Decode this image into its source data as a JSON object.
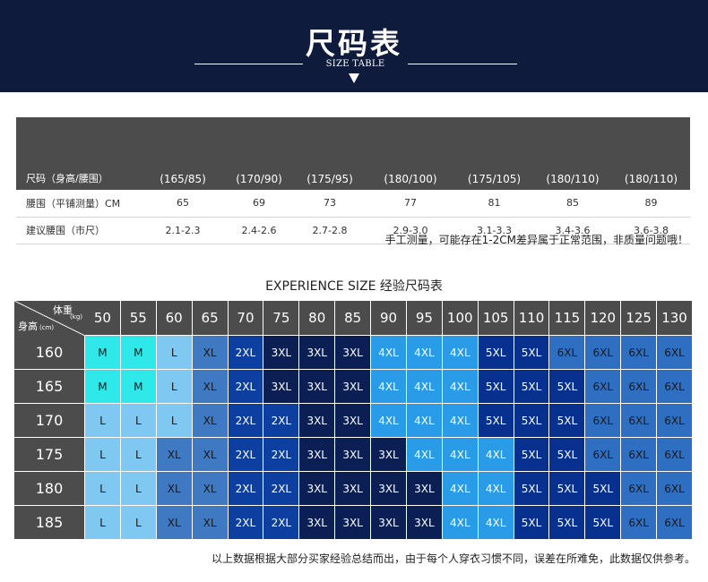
{
  "header": {
    "title": "尺码表",
    "subtitle": "SIZE TABLE"
  },
  "size_table": {
    "header": [
      "尺码（身高/腰围）",
      "(165/85)",
      "(170/90)",
      "(175/95)",
      "(180/100)",
      "(175/105)",
      "(180/110)",
      "(180/110)"
    ],
    "rows": [
      [
        "腰围（平铺测量）CM",
        "65",
        "69",
        "73",
        "77",
        "81",
        "85",
        "89"
      ],
      [
        "建议腰围（市尺）",
        "2.1-2.3",
        "2.4-2.6",
        "2.7-2.8",
        "2.9-3.0",
        "3.1-3.3",
        "3.4-3.6",
        "3.6-3.8"
      ]
    ]
  },
  "note_measure": "手工测量，可能存在1-2CM差异属于正常范围，非质量问题哦！",
  "experience": {
    "title": "EXPERIENCE SIZE 经验尺码表",
    "corner": {
      "weight_label": "体重",
      "weight_unit": "(kg)",
      "height_label": "身高",
      "height_unit": "(cm)"
    },
    "weights": [
      "50",
      "55",
      "60",
      "65",
      "70",
      "75",
      "80",
      "85",
      "90",
      "95",
      "100",
      "105",
      "110",
      "115",
      "120",
      "125",
      "130"
    ],
    "heights": [
      "160",
      "165",
      "170",
      "175",
      "180",
      "185"
    ],
    "rows": [
      [
        "M",
        "M",
        "L",
        "XL",
        "2XL",
        "3XL",
        "3XL",
        "3XL",
        "4XL",
        "4XL",
        "4XL",
        "5XL",
        "5XL",
        "6XL",
        "6XL",
        "6XL",
        "6XL"
      ],
      [
        "M",
        "M",
        "L",
        "XL",
        "2XL",
        "3XL",
        "3XL",
        "3XL",
        "4XL",
        "4XL",
        "4XL",
        "5XL",
        "5XL",
        "5XL",
        "6XL",
        "6XL",
        "6XL"
      ],
      [
        "L",
        "L",
        "L",
        "XL",
        "2XL",
        "2XL",
        "3XL",
        "3XL",
        "4XL",
        "4XL",
        "4XL",
        "5XL",
        "5XL",
        "5XL",
        "6XL",
        "6XL",
        "6XL"
      ],
      [
        "L",
        "L",
        "XL",
        "XL",
        "2XL",
        "2XL",
        "3XL",
        "3XL",
        "3XL",
        "4XL",
        "4XL",
        "4XL",
        "5XL",
        "5XL",
        "6XL",
        "6XL",
        "6XL"
      ],
      [
        "L",
        "L",
        "XL",
        "XL",
        "2XL",
        "2XL",
        "3XL",
        "3XL",
        "3XL",
        "3XL",
        "4XL",
        "4XL",
        "5XL",
        "5XL",
        "5XL",
        "6XL",
        "6XL"
      ],
      [
        "L",
        "L",
        "XL",
        "XL",
        "2XL",
        "2XL",
        "3XL",
        "3XL",
        "3XL",
        "3XL",
        "4XL",
        "4XL",
        "5XL",
        "5XL",
        "5XL",
        "6XL",
        "6XL"
      ]
    ],
    "size_colors": {
      "M": {
        "bg": "#2ee8ea",
        "fg": "#1a1a1a"
      },
      "L": {
        "bg": "#7ec8f2",
        "fg": "#1a1a1a"
      },
      "XL": {
        "bg": "#3f79c2",
        "fg": "#1a1a1a"
      },
      "2XL": {
        "bg": "#0c3fa0",
        "fg": "#ffffff"
      },
      "3XL": {
        "bg": "#0b1f55",
        "fg": "#ffffff"
      },
      "4XL": {
        "bg": "#2a9be6",
        "fg": "#ffffff"
      },
      "5XL": {
        "bg": "#07308f",
        "fg": "#ffffff"
      },
      "6XL": {
        "bg": "#2f6fc2",
        "fg": "#1a1a1a"
      }
    }
  },
  "note_disclaimer": "以上数据根据大部分买家经验总结而出，由于每个人穿衣习惯不同，误差在所难免，此数据仅供参考。"
}
